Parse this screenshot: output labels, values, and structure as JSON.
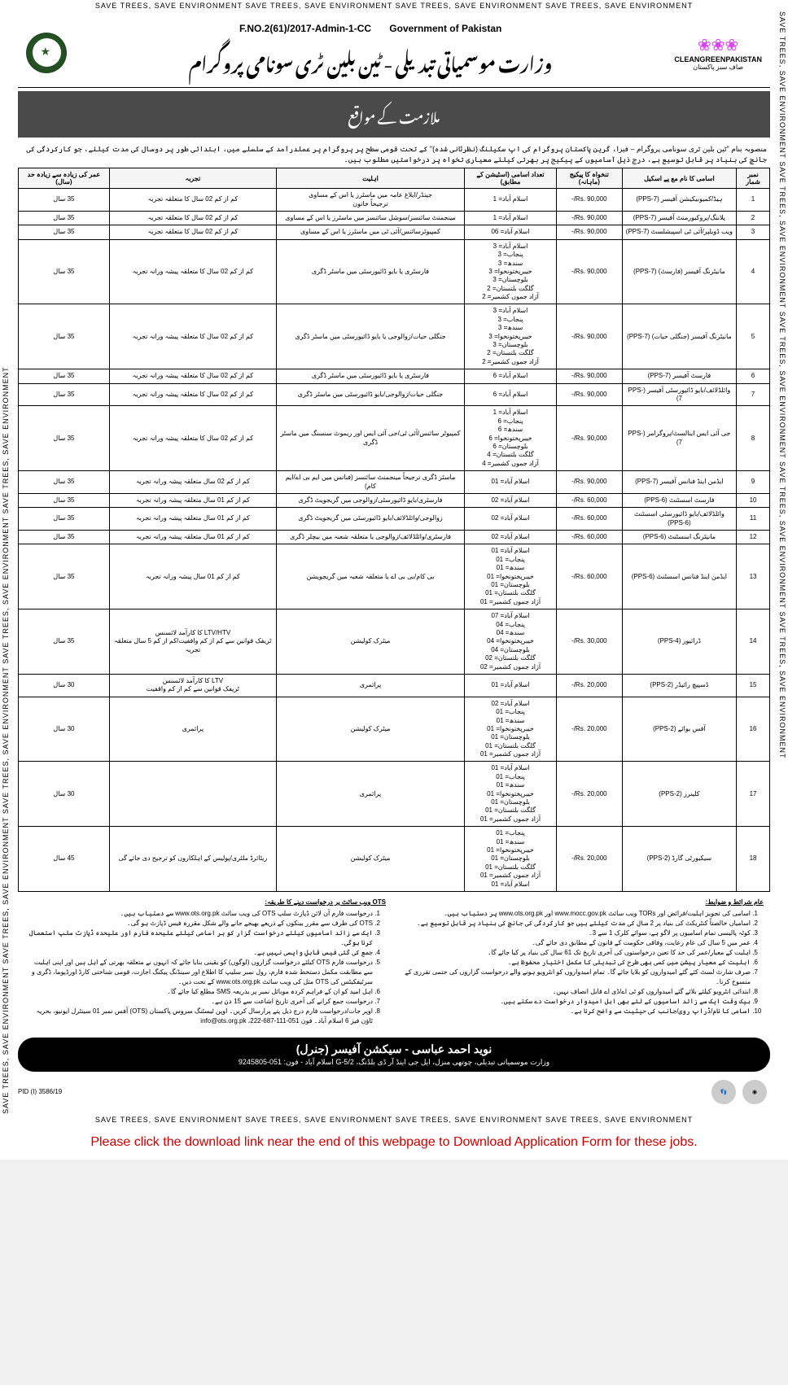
{
  "border_text": "SAVE TREES, SAVE ENVIRONMENT    SAVE TREES, SAVE ENVIRONMENT    SAVE TREES, SAVE ENVIRONMENT    SAVE TREES, SAVE ENVIRONMENT",
  "side_text": "SAVE TREES, SAVE ENVIRONMENT    SAVE TREES, SAVE ENVIRONMENT    SAVE TREES, SAVE ENVIRONMENT    SAVE TREES, SAVE ENVIRONMENT    SAVE TREES, SAVE ENVIRONMENT",
  "header": {
    "ref": "F.NO.2(61)/2017-Admin-1-CC",
    "gov": "Government of Pakistan",
    "urdu_title": "وزارت موسمیاتی تبدیلی - ٹین بلین ٹری سونامی پروگرام",
    "logo_brand": "CLEANGREENPAKISTAN",
    "logo_urdu": "صاف سبز پاکستان"
  },
  "banner": "ملازمت کے مواقع",
  "intro": "منصوبہ بنام \"ٹین بلین ٹری سونامی پروگرام – فیزI، گرین پاکستان پروگرام کی اپ سکیلنگ (نظرثانی شدہ)\" کے تحت قومی سطح پر پروگرام پر عملدرآمد کے سلسلے میں، ابتدائی طور پر دوسال کی مدت کیلئے، جو کارکردگی کی جانچ کی بنیاد پر قابل توسیع ہے، درج ذیل آسامیوں کے پیکیج پر بھرتی کیلئے معیاری تخواہ پر درخواستیں مطلوب ہیں۔",
  "table": {
    "headers": [
      "نمبر شمار",
      "اسامی کا نام مع پے اسکیل",
      "تنخواہ کا پیکیج (ماہانہ)",
      "تعداد اسامی (اسٹیشن کے مطابق)",
      "اہلیت",
      "تجربہ",
      "عمر کی زیادہ سے زیادہ حد (سال)"
    ],
    "rows": [
      {
        "sr": "1",
        "post": "ہیڈ/کمیونیکیشن آفیسر (PPS-7)",
        "salary": "Rs. 90,000/-",
        "vac": "اسلام آباد= 1",
        "qual": "جینڈر/ابلاغ عامہ میں ماسٹرز یا اس کے مساوی\nترجیحاً خاتون",
        "exp": "کم از کم 02 سال کا متعلقہ تجربہ",
        "age": "35 سال"
      },
      {
        "sr": "2",
        "post": "پلاننگ/پروکیورمنٹ آفیسر (PPS-7)",
        "salary": "Rs. 90,000/-",
        "vac": "اسلام آباد= 1",
        "qual": "مینجمنٹ سائنسز/سوشل سائنسز میں ماسٹرز یا اس کے مساوی",
        "exp": "کم از کم 02 سال کا متعلقہ تجربہ",
        "age": "35 سال"
      },
      {
        "sr": "3",
        "post": "ویب ڈویلپر/آئی ٹی اسپیشلسٹ (PPS-7)",
        "salary": "Rs. 90,000/-",
        "vac": "اسلام آباد= 06",
        "qual": "کمپیوٹرسائنس/آئی ٹی میں ماسٹرز یا اس کے مساوی",
        "exp": "کم از کم 02 سال کا متعلقہ تجربہ",
        "age": "35 سال"
      },
      {
        "sr": "4",
        "post": "مانیٹرنگ آفیسر (فارسٹ) (PPS-7)",
        "salary": "Rs. 90,000/-",
        "vac": "اسلام آباد= 3\nپنجاب= 3\nسندھ= 3\nخیبرپختونخوا= 3\nبلوچستان= 3\nگلگت بلتستان= 2\nآزاد جموں کشمیر= 2",
        "qual": "فارسٹری یا بایو ڈائیورسٹی میں ماسٹر ڈگری",
        "exp": "کم از کم 02 سال کا متعلقہ پیشہ ورانہ تجربہ",
        "age": "35 سال"
      },
      {
        "sr": "5",
        "post": "مانیٹرنگ آفیسر (جنگلی حیات) (PPS-7)",
        "salary": "Rs. 90,000/-",
        "vac": "اسلام آباد= 3\nپنجاب= 3\nسندھ= 3\nخیبرپختونخوا= 3\nبلوچستان= 3\nگلگت بلتستان= 2\nآزاد جموں کشمیر= 2",
        "qual": "جنگلی حیات/زوالوجی یا بایو ڈائیورسٹی میں ماسٹر ڈگری",
        "exp": "کم از کم 02 سال کا متعلقہ پیشہ ورانہ تجربہ",
        "age": "35 سال"
      },
      {
        "sr": "6",
        "post": "فارسٹ آفیسر (PPS-7)",
        "salary": "Rs. 90,000/-",
        "vac": "اسلام آباد= 6",
        "qual": "فارسٹری یا بایو ڈائیورسٹی میں ماسٹر ڈگری",
        "exp": "کم از کم 02 سال کا متعلقہ پیشہ ورانہ تجربہ",
        "age": "35 سال"
      },
      {
        "sr": "7",
        "post": "وائلڈلائف/بایو ڈائیورسٹی آفیسر (PPS-7)",
        "salary": "Rs. 90,000/-",
        "vac": "اسلام آباد= 6",
        "qual": "جنگلی حیات/زوالوجی/بایو ڈائیورسٹی میں ماسٹر ڈگری",
        "exp": "کم از کم 02 سال کا متعلقہ پیشہ ورانہ تجربہ",
        "age": "35 سال"
      },
      {
        "sr": "8",
        "post": "جی آئی ایس اینالسٹ/پروگرامر (PPS-7)",
        "salary": "Rs. 90,000/-",
        "vac": "اسلام آباد= 1\nپنجاب= 6\nسندھ= 6\nخیبرپختونخوا= 6\nبلوچستان= 6\nگلگت بلتستان= 4\nآزاد جموں کشمیر= 4",
        "qual": "کمپیوٹر سائنس/آئی ٹی/جی آئی ایس اور ریموٹ سنسنگ میں ماسٹر ڈگری",
        "exp": "کم از کم 02 سال کا متعلقہ پیشہ ورانہ تجربہ",
        "age": "35 سال"
      },
      {
        "sr": "9",
        "post": "ایڈمن اینڈ فنانس آفیسر (PPS-7)",
        "salary": "Rs. 90,000/-",
        "vac": "اسلام آباد= 01",
        "qual": "ماسٹر ڈگری ترجیحاً مینجمنٹ سائنسز (فنانس میں ایم بی اے/ایم کام)",
        "exp": "کم از کم 02 سال متعلقہ پیشہ ورانہ تجربہ",
        "age": "35 سال"
      },
      {
        "sr": "10",
        "post": "فارسٹ اسسٹنٹ (PPS-6)",
        "salary": "Rs. 60,000/-",
        "vac": "اسلام آباد= 02",
        "qual": "فارسٹری/بایو ڈائیورسٹی/زوالوجی میں گریجویٹ ڈگری",
        "exp": "کم از کم 01 سال متعلقہ پیشہ ورانہ تجربہ",
        "age": "35 سال"
      },
      {
        "sr": "11",
        "post": "وائلڈلائف/بایو ڈائیورسٹی اسسٹنٹ (PPS-6)",
        "salary": "Rs. 60,000/-",
        "vac": "اسلام آباد= 02",
        "qual": "زوالوجی/وائلڈلائف/بایو ڈائیورسٹی میں گریجویٹ ڈگری",
        "exp": "کم از کم 01 سال متعلقہ پیشہ ورانہ تجربہ",
        "age": "35 سال"
      },
      {
        "sr": "12",
        "post": "مانیٹرنگ اسسٹنٹ (PPS-6)",
        "salary": "Rs. 60,000/-",
        "vac": "اسلام آباد= 02",
        "qual": "فارسٹری/وائلڈلائف/زوالوجی یا متعلقہ شعبہ میں بیچلر ڈگری",
        "exp": "کم از کم 01 سال متعلقہ پیشہ ورانہ تجربہ",
        "age": "35 سال"
      },
      {
        "sr": "13",
        "post": "ایڈمن اینڈ فنانس اسسٹنٹ (PPS-6)",
        "salary": "Rs. 60,000/-",
        "vac": "اسلام آباد= 01\nپنجاب= 01\nسندھ= 01\nخیبرپختونخوا= 01\nبلوچستان= 01\nگلگت بلتستان= 01\nآزاد جموں کشمیر= 01",
        "qual": "بی کام/بی بی اے یا متعلقہ شعبہ میں گریجویشن",
        "exp": "کم از کم 01 سال پیشہ ورانہ تجربہ",
        "age": "35 سال"
      },
      {
        "sr": "14",
        "post": "ڈرائیور (PPS-4)",
        "salary": "Rs. 30,000/-",
        "vac": "اسلام آباد= 07\nپنجاب= 04\nسندھ= 04\nخیبرپختونخوا= 04\nبلوچستان= 04\nگلگت بلتستان= 02\nآزاد جموں کشمیر= 02",
        "qual": "میٹرک کولیشن",
        "exp": "LTV/HTV کا کارآمد لائسنس\nٹریفک قوانین سے کم از کم واقفیت/کم از کم 5 سال متعلقہ تجربہ",
        "age": "35 سال"
      },
      {
        "sr": "15",
        "post": "ڈسپیچ رائیڈر (PPS-2)",
        "salary": "Rs. 20,000/-",
        "vac": "اسلام آباد= 01",
        "qual": "پرائمری",
        "exp": "LTV کا کارآمد لائسنس\nٹریفک قوانین سے کم از کم واقفیت",
        "age": "30 سال"
      },
      {
        "sr": "16",
        "post": "آفس بوائے (PPS-2)",
        "salary": "Rs. 20,000/-",
        "vac": "اسلام آباد= 02\nپنجاب= 01\nسندھ= 01\nخیبرپختونخوا= 01\nبلوچستان= 01\nگلگت بلتستان= 01\nآزاد جموں کشمیر= 01",
        "qual": "میٹرک کولیشن",
        "exp": "پرائمری",
        "age": "30 سال"
      },
      {
        "sr": "17",
        "post": "کلینرز (PPS-2)",
        "salary": "Rs. 20,000/-",
        "vac": "اسلام آباد= 01\nپنجاب= 01\nسندھ= 01\nخیبرپختونخوا= 01\nبلوچستان= 01\nگلگت بلتستان= 01\nآزاد جموں کشمیر= 01",
        "qual": "پرائمری",
        "exp": "",
        "age": "30 سال"
      },
      {
        "sr": "18",
        "post": "سیکیورٹی گارڈ (PPS-2)",
        "salary": "Rs. 20,000/-",
        "vac": "پنجاب= 01\nسندھ= 01\nخیبرپختونخوا= 01\nبلوچستان= 01\nگلگت بلتستان= 01\nآزاد جموں کشمیر= 01\nاسلام آباد= 01",
        "qual": "میٹرک کولیشن",
        "exp": "ریٹائرڈ ملٹری/پولیس کے اہلکاروں کو ترجیح دی جائے گی",
        "age": "45 سال"
      }
    ]
  },
  "notes": {
    "left_title": "عام شرائط و ضوابط:",
    "left": [
      "اسامی کی تجویز اہلیت/فرائض اور TORs ویب سائٹ www.mocc.gov.pk اور www.ots.org.pk پر دستیاب ہیں۔",
      "اسامیاں خالصتاً کنٹریکٹ کی بنیاد پر 2 سال کی مدت کیلئے ہیں جو کارکردگی کی جانچ کی بنیاد پر قابل توسیع ہے۔",
      "کوٹہ پالیسی تمام اسامیوں پر لاگو ہے، سوائے کلرک 1 سے 3۔",
      "عمر میں 5 سال کی عام رعایت، وفاقی حکومت کے قانون کے مطابق دی جائے گی۔",
      "اہلیت کے معیار/عمر کی حد کا تعین درخواستوں کی آخری تاریخ تک 61 سال کی بنیاد پر کیا جائے گا۔",
      "اہلیت کے معیار پیشن میں کسی بھی طرح کی تبدیلی کا مکمل اختیار محفوظ ہے۔",
      "صرف شارٹ لسٹ کئے گئے امیدواروں کو بلایا جائے گا۔ تمام امیدواروں کو انٹرویو ہونے والے درخواست گزاروں کی حتمی تقرری کے منسوخ کرنا۔",
      "ابتدائی انٹرویو کیلئے بلائے گئے امیدواروں کو ٹی اے/ڈی اے قابل انصاف نہیں۔",
      "بیک وقت ایک سے زائد اسامیوں کے لئے بھی اہل امیدوار درخواست دے سکتے ہیں۔",
      "اسامی کا نام/ڈراپ روی/جانب کی حیثیت سے واضح کرنا ہے۔"
    ],
    "right_title": "OTS ویب سائٹ پر درخواست دینے کا طریقہ:",
    "right": [
      "درخواست فارم آن لائن ڈپازٹ سلپ OTS کی ویب سائٹ www.ots.org.pk سے دستیاب ہیں۔",
      "OTS کی طرف سے مقرر بینکوں کے ذریعے بھیجے جانے والے شکل مقررہ فیس ڈپازٹ ہو گی۔",
      "ایک سے زائد اسامیوں کیلئے درخواست گزار کو ہر اسامی کیلئے علیحدہ فارم اور علیحدہ ڈپازٹ سلپ استعمال کرنا ہوگی۔",
      "جمع کی گئی فیس قابلِ واپسی نہیں ہے۔",
      "درخواست فارم OTS کیلئے درخواست گزاروں (لوگوں) کو یقینی بنایا جائے کہ انہوں نے متعلقہ بھرتی کے اہل ہیں اور اپنی اہلیت سے مطابقت مکمل دستخط شدہ فارم، رول نمبر سلیپ کا اطلاع اور سینڈنگ پیکنگ اجازت، قومی شناختی کارڈ اورڈپوما، ڈگری و سرٹیفکیٹس کی OTS مثل کی ویب سائٹ www.ots.org.pk کے تحت دیں۔",
      "اہل امید کو ان کے فراہم کردہ موبائل نمبر پر بذریعہ SMS مطلع کیا جائے گا۔",
      "درخواست جمع کرانے کی آخری تاریخ اشاعت سے 15 دن ہے۔",
      "اوپر جات/درخواست فارم درج ذیل پتے پرارسال کریں۔ اوپن ٹیسٹنگ سروس پاکستان (OTS) آفس نمبر 01 سینٹرل ایونیو، بحریہ ٹاؤن فیز 6 اسلام آباد۔ فون 051-111-687-222، info@ots.org.pk"
    ]
  },
  "footer": {
    "name": "نوید احمد عباسی  -  سیکشن آفیسر (جنرل)",
    "addr": "وزارت موسمیاتی تبدیلی، چوتھی منزل، ایل جی اینڈ آر ڈی بلڈنگ، G-5/2 اسلام آباد - فون: 051-9245805",
    "pid": "PID (I) 3586/19"
  },
  "download_note": "Please click the download link near the end of this webpage to Download Application Form for these jobs."
}
